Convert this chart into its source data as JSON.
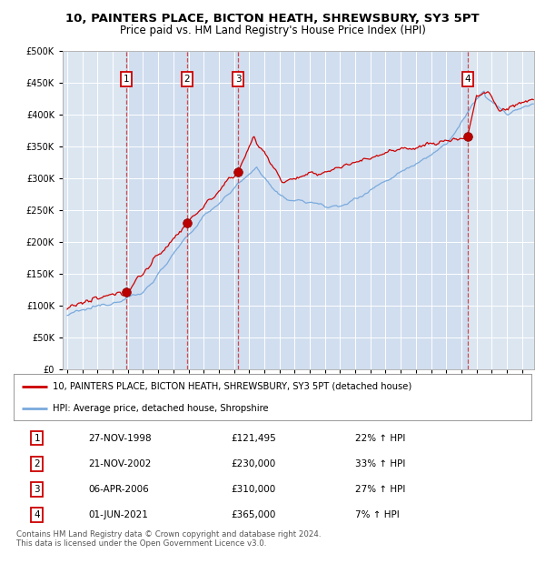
{
  "title": "10, PAINTERS PLACE, BICTON HEATH, SHREWSBURY, SY3 5PT",
  "subtitle": "Price paid vs. HM Land Registry's House Price Index (HPI)",
  "title_fontsize": 9.5,
  "subtitle_fontsize": 8.5,
  "xlim": [
    1994.7,
    2025.8
  ],
  "ylim": [
    0,
    500000
  ],
  "yticks": [
    0,
    50000,
    100000,
    150000,
    200000,
    250000,
    300000,
    350000,
    400000,
    450000,
    500000
  ],
  "xticks": [
    1995,
    1996,
    1997,
    1998,
    1999,
    2000,
    2001,
    2002,
    2003,
    2004,
    2005,
    2006,
    2007,
    2008,
    2009,
    2010,
    2011,
    2012,
    2013,
    2014,
    2015,
    2016,
    2017,
    2018,
    2019,
    2020,
    2021,
    2022,
    2023,
    2024,
    2025
  ],
  "sale_dates": [
    1998.9,
    2002.9,
    2006.27,
    2021.42
  ],
  "sale_prices": [
    121495,
    230000,
    310000,
    365000
  ],
  "sale_labels": [
    "1",
    "2",
    "3",
    "4"
  ],
  "price_line_color": "#cc0000",
  "hpi_line_color": "#7aaadd",
  "dashed_line_color": "#cc3333",
  "background_color": "#dce6f1",
  "grid_color": "#ffffff",
  "legend_entries": [
    "10, PAINTERS PLACE, BICTON HEATH, SHREWSBURY, SY3 5PT (detached house)",
    "HPI: Average price, detached house, Shropshire"
  ],
  "table_data": [
    [
      "1",
      "27-NOV-1998",
      "£121,495",
      "22% ↑ HPI"
    ],
    [
      "2",
      "21-NOV-2002",
      "£230,000",
      "33% ↑ HPI"
    ],
    [
      "3",
      "06-APR-2006",
      "£310,000",
      "27% ↑ HPI"
    ],
    [
      "4",
      "01-JUN-2021",
      "£365,000",
      "7% ↑ HPI"
    ]
  ],
  "footnote": "Contains HM Land Registry data © Crown copyright and database right 2024.\nThis data is licensed under the Open Government Licence v3.0.",
  "shaded_region": [
    1998.9,
    2021.42
  ]
}
